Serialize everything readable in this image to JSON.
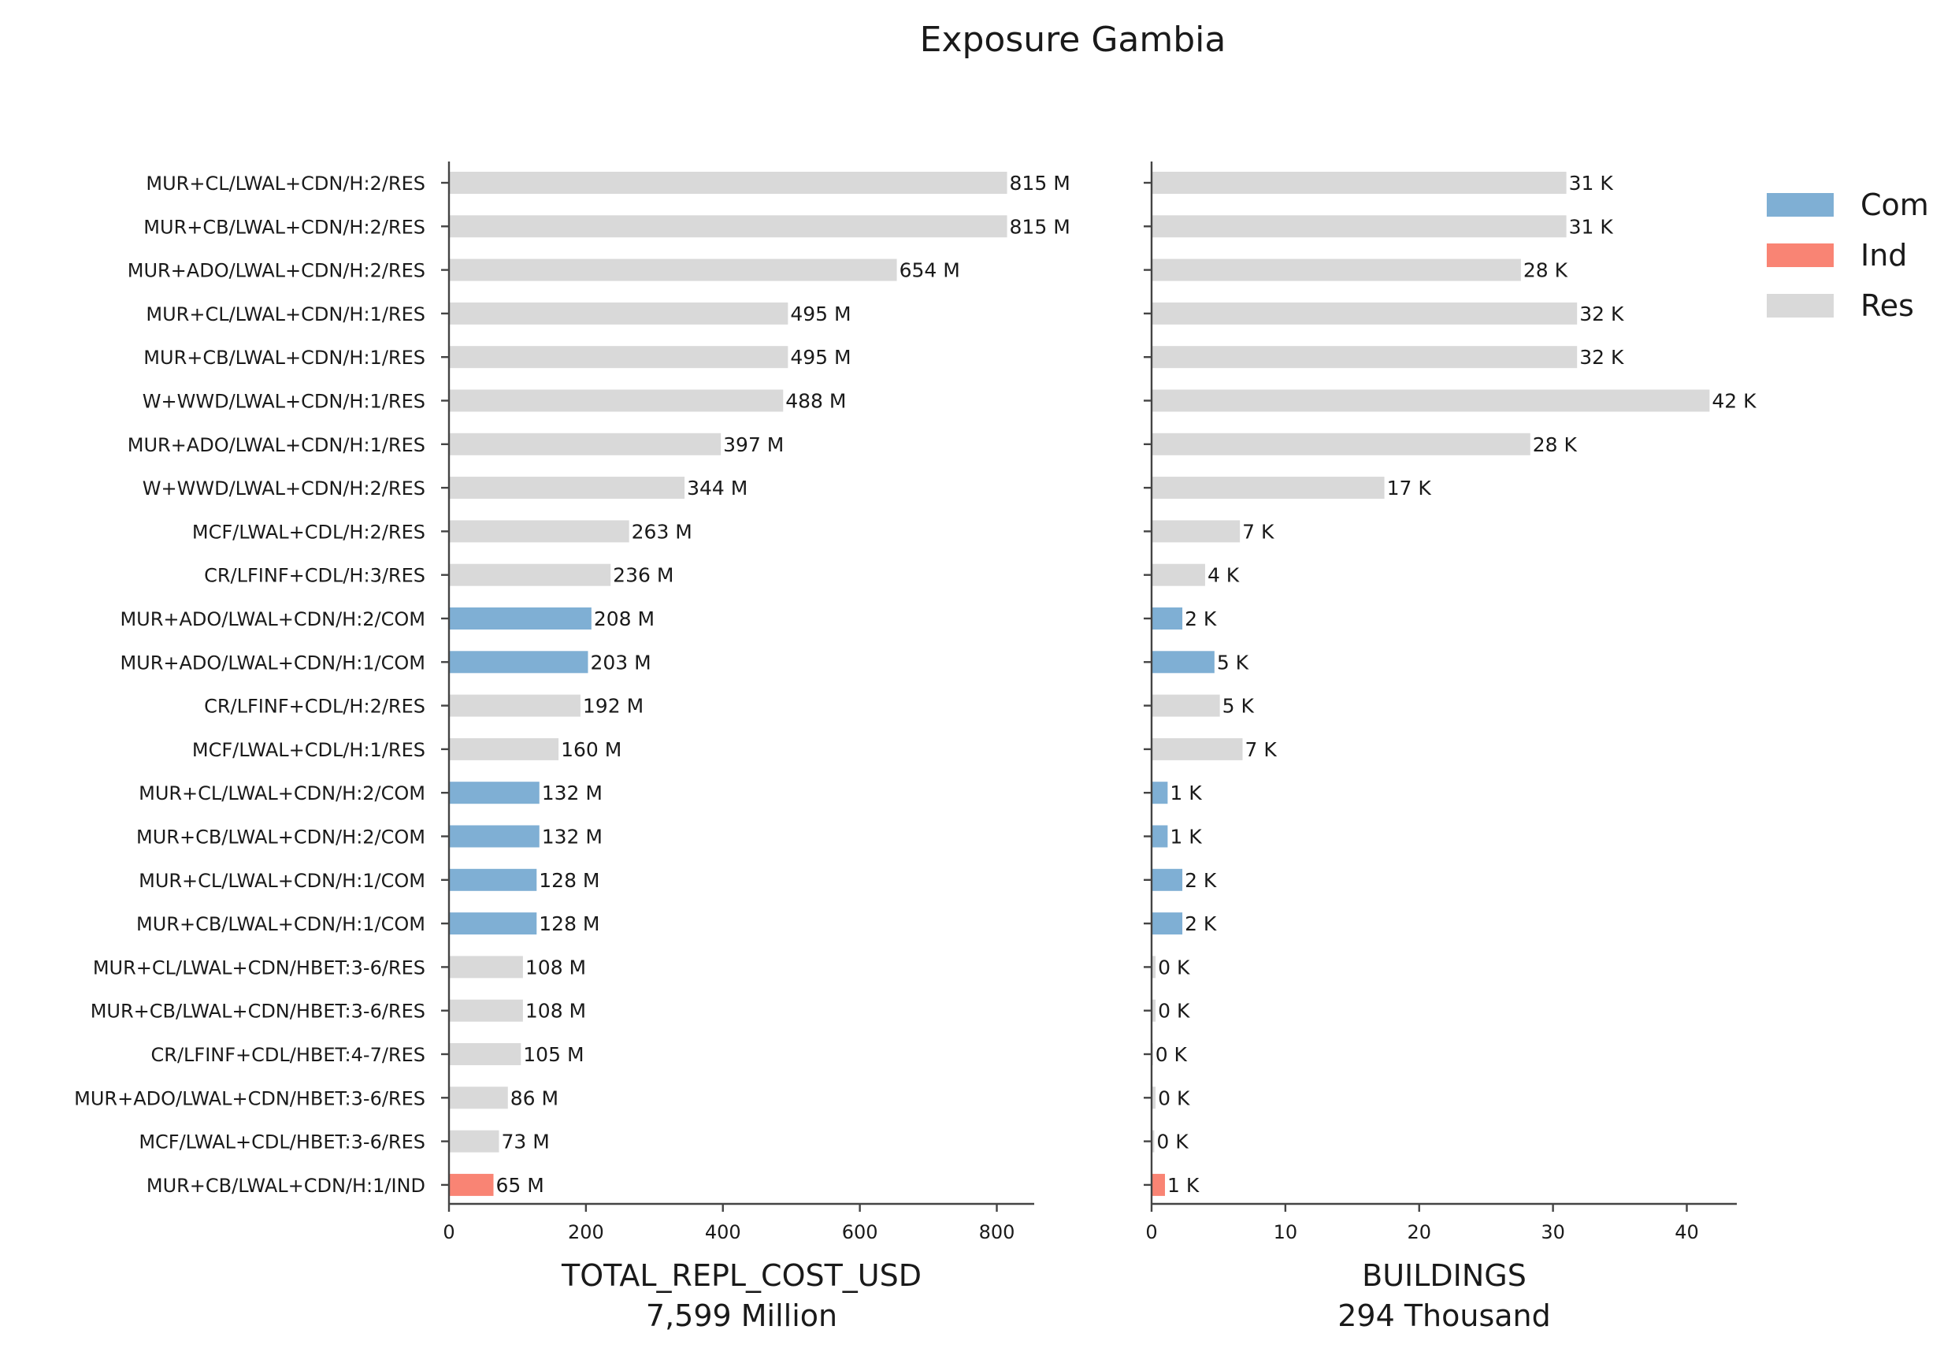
{
  "chart_data": {
    "type": "bar",
    "orientation": "horizontal",
    "title": "Exposure Gambia",
    "categories": [
      "MUR+CL/LWAL+CDN/H:2/RES",
      "MUR+CB/LWAL+CDN/H:2/RES",
      "MUR+ADO/LWAL+CDN/H:2/RES",
      "MUR+CL/LWAL+CDN/H:1/RES",
      "MUR+CB/LWAL+CDN/H:1/RES",
      "W+WWD/LWAL+CDN/H:1/RES",
      "MUR+ADO/LWAL+CDN/H:1/RES",
      "W+WWD/LWAL+CDN/H:2/RES",
      "MCF/LWAL+CDL/H:2/RES",
      "CR/LFINF+CDL/H:3/RES",
      "MUR+ADO/LWAL+CDN/H:2/COM",
      "MUR+ADO/LWAL+CDN/H:1/COM",
      "CR/LFINF+CDL/H:2/RES",
      "MCF/LWAL+CDL/H:1/RES",
      "MUR+CL/LWAL+CDN/H:2/COM",
      "MUR+CB/LWAL+CDN/H:2/COM",
      "MUR+CL/LWAL+CDN/H:1/COM",
      "MUR+CB/LWAL+CDN/H:1/COM",
      "MUR+CL/LWAL+CDN/HBET:3-6/RES",
      "MUR+CB/LWAL+CDN/HBET:3-6/RES",
      "CR/LFINF+CDL/HBET:4-7/RES",
      "MUR+ADO/LWAL+CDN/HBET:3-6/RES",
      "MCF/LWAL+CDL/HBET:3-6/RES",
      "MUR+CB/LWAL+CDN/H:1/IND"
    ],
    "occupancy": [
      "Res",
      "Res",
      "Res",
      "Res",
      "Res",
      "Res",
      "Res",
      "Res",
      "Res",
      "Res",
      "Com",
      "Com",
      "Res",
      "Res",
      "Com",
      "Com",
      "Com",
      "Com",
      "Res",
      "Res",
      "Res",
      "Res",
      "Res",
      "Ind"
    ],
    "legend": {
      "placement": "top-right",
      "entries": [
        {
          "name": "Com",
          "color": "#7fafd4"
        },
        {
          "name": "Ind",
          "color": "#f98474"
        },
        {
          "name": "Res",
          "color": "#d9d9d9"
        }
      ]
    },
    "panels": [
      {
        "xlabel": "TOTAL_REPL_COST_USD",
        "subtitle": "7,599 Million",
        "values": [
          815,
          815,
          654,
          495,
          495,
          488,
          397,
          344,
          263,
          236,
          208,
          203,
          192,
          160,
          132,
          132,
          128,
          128,
          108,
          108,
          105,
          86,
          73,
          65
        ],
        "labels": [
          "815 M",
          "815 M",
          "654 M",
          "495 M",
          "495 M",
          "488 M",
          "397 M",
          "344 M",
          "263 M",
          "236 M",
          "208 M",
          "203 M",
          "192 M",
          "160 M",
          "132 M",
          "132 M",
          "128 M",
          "128 M",
          "108 M",
          "108 M",
          "105 M",
          "86 M",
          "73 M",
          "65 M"
        ],
        "xlim": [
          0,
          855
        ],
        "ticks": [
          0,
          200,
          400,
          600,
          800
        ]
      },
      {
        "xlabel": "BUILDINGS",
        "subtitle": "294 Thousand",
        "values": [
          31,
          31,
          27.6,
          31.8,
          31.8,
          41.7,
          28.3,
          17.4,
          6.6,
          4.0,
          2.3,
          4.7,
          5.1,
          6.8,
          1.2,
          1.2,
          2.3,
          2.3,
          0.3,
          0.3,
          0.1,
          0.3,
          0.2,
          1.0
        ],
        "labels": [
          "31 K",
          "31 K",
          "28 K",
          "32 K",
          "32 K",
          "42 K",
          "28 K",
          "17 K",
          "7 K",
          "4 K",
          "2 K",
          "5 K",
          "5 K",
          "7 K",
          "1 K",
          "1 K",
          "2 K",
          "2 K",
          "0 K",
          "0 K",
          "0 K",
          "0 K",
          "0 K",
          "1 K"
        ],
        "xlim": [
          0,
          43.8
        ],
        "ticks": [
          0,
          10,
          20,
          30,
          40
        ]
      }
    ],
    "grid": false
  }
}
